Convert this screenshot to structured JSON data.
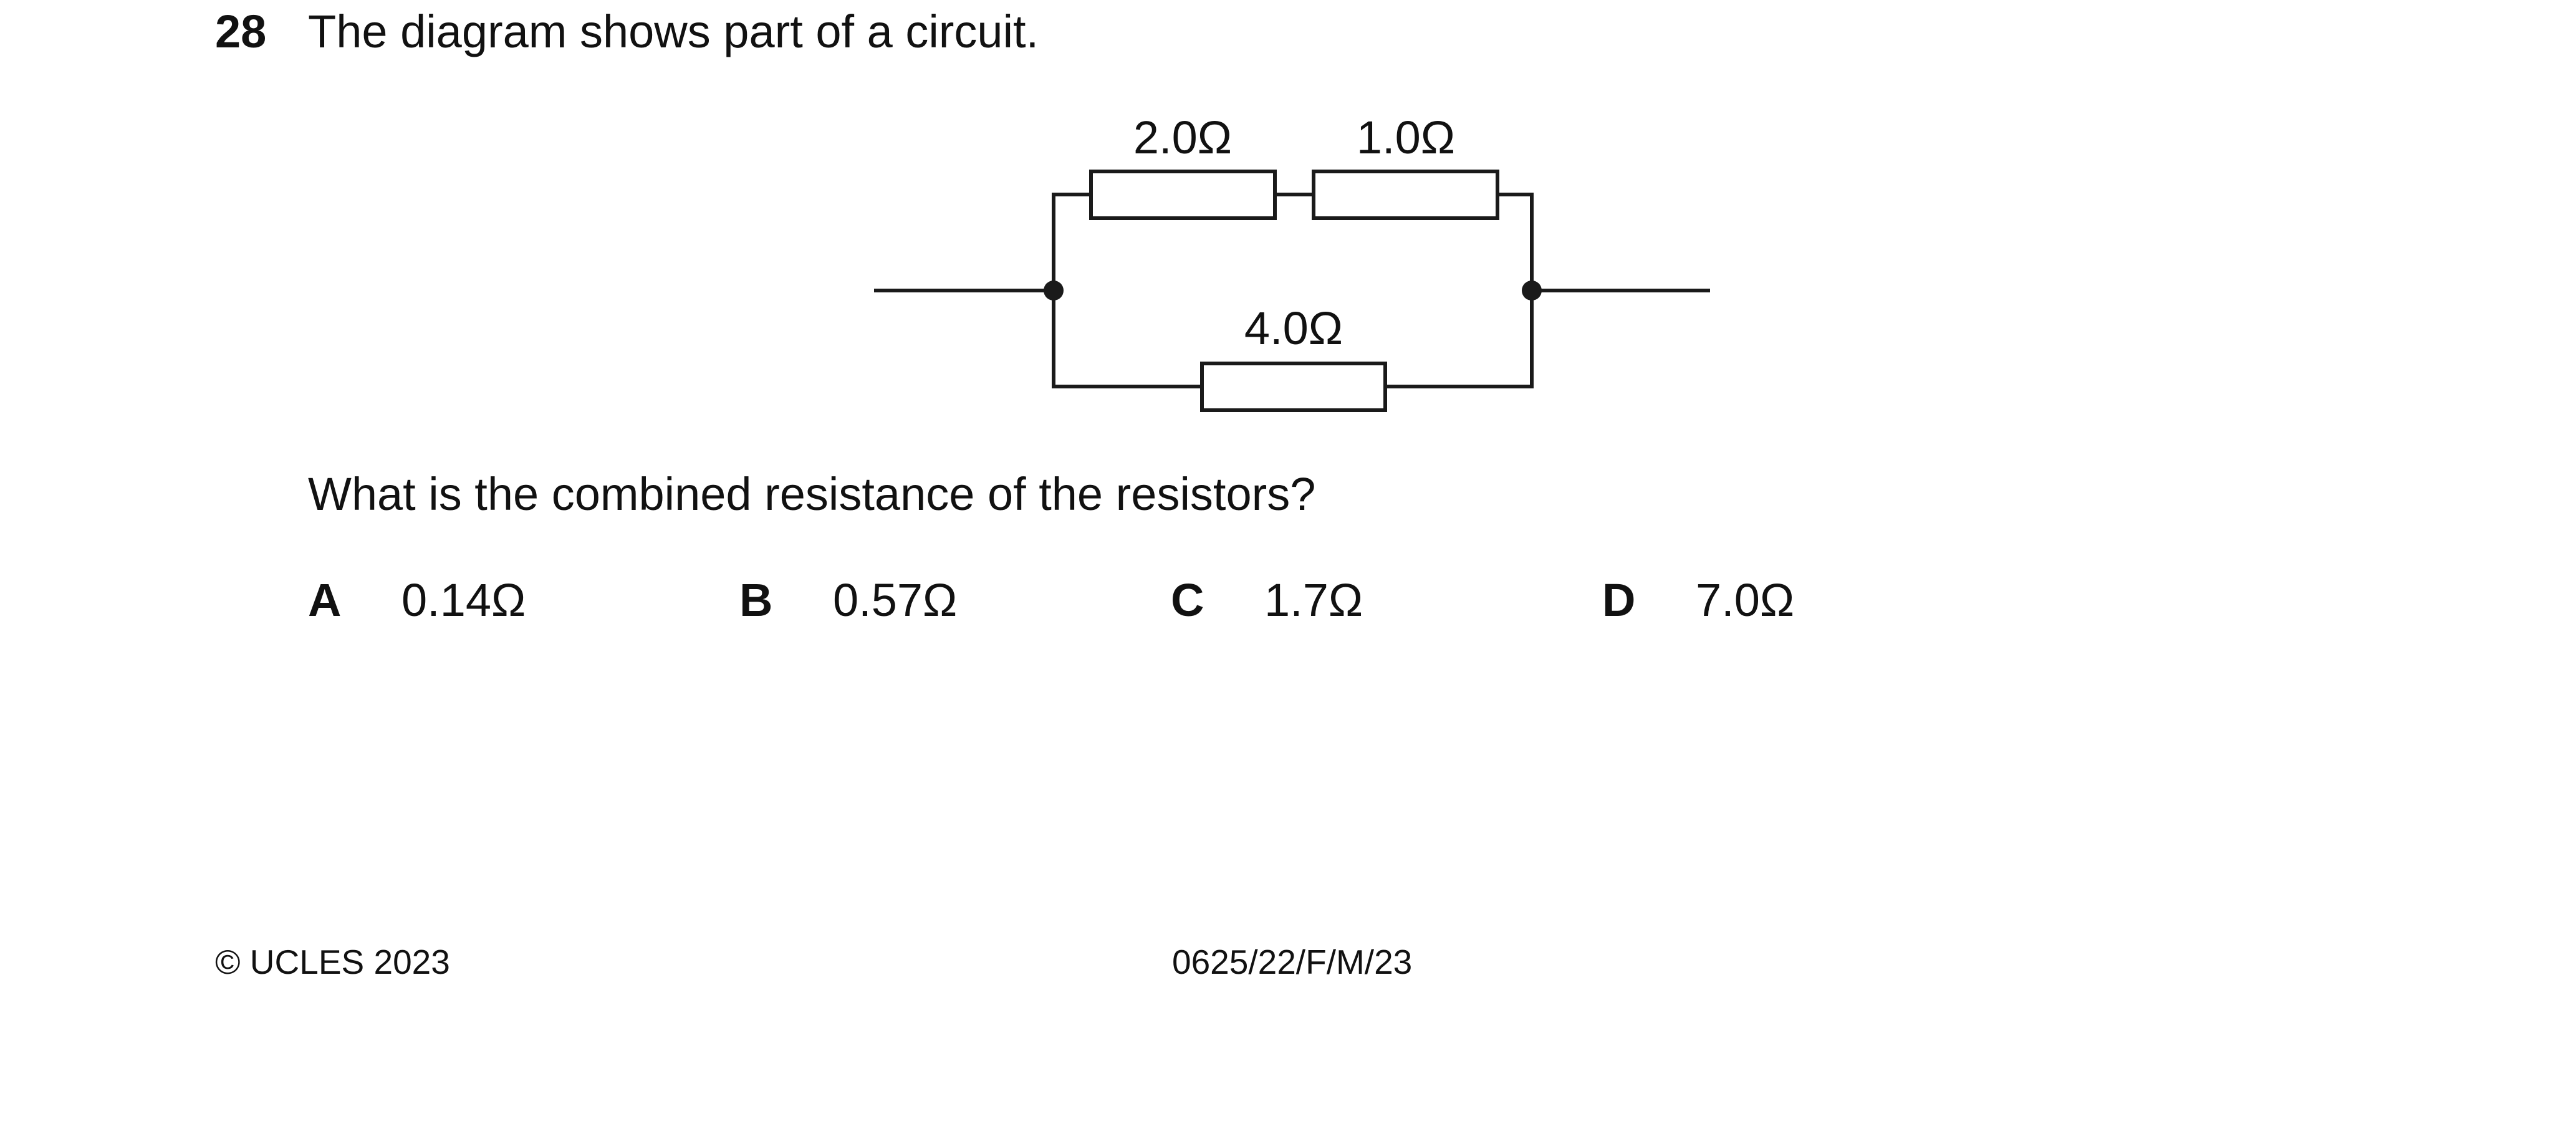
{
  "question": {
    "number": "28",
    "stem": "The diagram shows part of a circuit.",
    "prompt": "What is the combined resistance of the resistors?"
  },
  "circuit": {
    "resistors": [
      {
        "id": "top-left",
        "label": "2.0Ω"
      },
      {
        "id": "top-right",
        "label": "1.0Ω"
      },
      {
        "id": "bottom",
        "label": "4.0Ω"
      }
    ]
  },
  "options": [
    {
      "letter": "A",
      "value": "0.14Ω"
    },
    {
      "letter": "B",
      "value": "0.57Ω"
    },
    {
      "letter": "C",
      "value": "1.7Ω"
    },
    {
      "letter": "D",
      "value": "7.0Ω"
    }
  ],
  "footer": {
    "copyright": "© UCLES 2023",
    "code": "0625/22/F/M/23"
  }
}
